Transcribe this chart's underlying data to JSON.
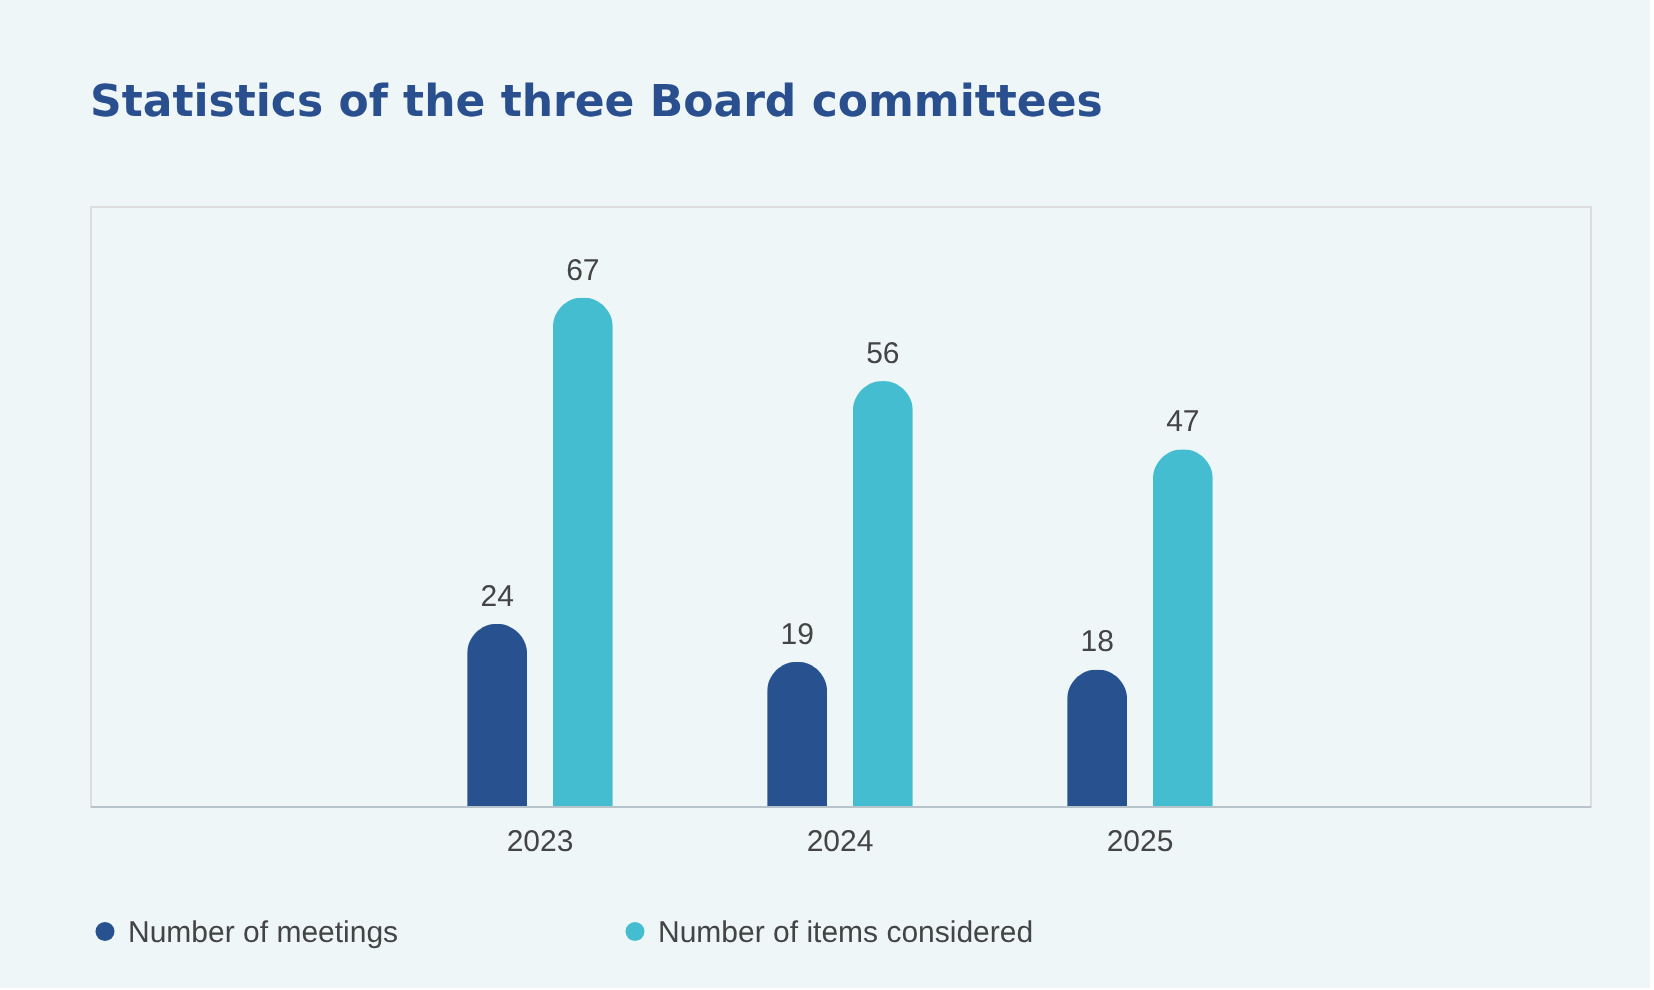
{
  "chart_data": {
    "type": "bar",
    "title": "Statistics of the three Board committees",
    "categories": [
      "2023",
      "2024",
      "2025"
    ],
    "series": [
      {
        "name": "Number of meetings",
        "color": "#27518f",
        "values": [
          24,
          19,
          18
        ]
      },
      {
        "name": "Number of items considered",
        "color": "#45bdd0",
        "values": [
          67,
          56,
          47
        ]
      }
    ],
    "data_labels": true,
    "legend": "bottom left",
    "grid": false
  }
}
